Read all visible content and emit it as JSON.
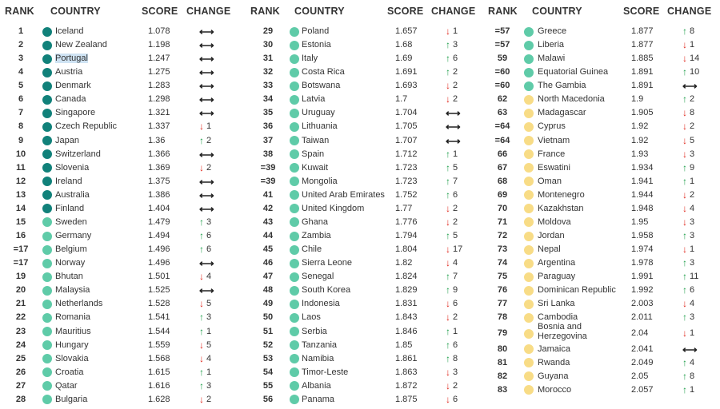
{
  "headers": {
    "rank": "RANK",
    "country": "COUNTRY",
    "score": "SCORE",
    "change": "CHANGE"
  },
  "colors": {
    "dark_teal": "#11817a",
    "mid_teal": "#2fb39b",
    "light_teal": "#5fcba8",
    "yellow": "#f8dc86",
    "up": "#1f9e4a",
    "down": "#e02a1f"
  },
  "columns": [
    [
      {
        "rank": "1",
        "country": "Iceland",
        "score": "1.078",
        "dir": "flat",
        "change": "",
        "tier": "dark"
      },
      {
        "rank": "2",
        "country": "New Zealand",
        "score": "1.198",
        "dir": "flat",
        "change": "",
        "tier": "dark"
      },
      {
        "rank": "3",
        "country": "Portugal",
        "score": "1.247",
        "dir": "flat",
        "change": "",
        "tier": "dark",
        "highlight": true
      },
      {
        "rank": "4",
        "country": "Austria",
        "score": "1.275",
        "dir": "flat",
        "change": "",
        "tier": "dark"
      },
      {
        "rank": "5",
        "country": "Denmark",
        "score": "1.283",
        "dir": "flat",
        "change": "",
        "tier": "dark"
      },
      {
        "rank": "6",
        "country": "Canada",
        "score": "1.298",
        "dir": "flat",
        "change": "",
        "tier": "dark"
      },
      {
        "rank": "7",
        "country": "Singapore",
        "score": "1.321",
        "dir": "flat",
        "change": "",
        "tier": "dark"
      },
      {
        "rank": "8",
        "country": "Czech Republic",
        "score": "1.337",
        "dir": "down",
        "change": "1",
        "tier": "dark"
      },
      {
        "rank": "9",
        "country": "Japan",
        "score": "1.36",
        "dir": "up",
        "change": "2",
        "tier": "dark"
      },
      {
        "rank": "10",
        "country": "Switzerland",
        "score": "1.366",
        "dir": "flat",
        "change": "",
        "tier": "dark"
      },
      {
        "rank": "11",
        "country": "Slovenia",
        "score": "1.369",
        "dir": "down",
        "change": "2",
        "tier": "dark"
      },
      {
        "rank": "12",
        "country": "Ireland",
        "score": "1.375",
        "dir": "flat",
        "change": "",
        "tier": "dark"
      },
      {
        "rank": "13",
        "country": "Australia",
        "score": "1.386",
        "dir": "flat",
        "change": "",
        "tier": "dark"
      },
      {
        "rank": "14",
        "country": "Finland",
        "score": "1.404",
        "dir": "flat",
        "change": "",
        "tier": "dark"
      },
      {
        "rank": "15",
        "country": "Sweden",
        "score": "1.479",
        "dir": "up",
        "change": "3",
        "tier": "light"
      },
      {
        "rank": "16",
        "country": "Germany",
        "score": "1.494",
        "dir": "up",
        "change": "6",
        "tier": "light"
      },
      {
        "rank": "=17",
        "country": "Belgium",
        "score": "1.496",
        "dir": "up",
        "change": "6",
        "tier": "light"
      },
      {
        "rank": "=17",
        "country": "Norway",
        "score": "1.496",
        "dir": "flat",
        "change": "",
        "tier": "light"
      },
      {
        "rank": "19",
        "country": "Bhutan",
        "score": "1.501",
        "dir": "down",
        "change": "4",
        "tier": "light"
      },
      {
        "rank": "20",
        "country": "Malaysia",
        "score": "1.525",
        "dir": "flat",
        "change": "",
        "tier": "light"
      },
      {
        "rank": "21",
        "country": "Netherlands",
        "score": "1.528",
        "dir": "down",
        "change": "5",
        "tier": "light"
      },
      {
        "rank": "22",
        "country": "Romania",
        "score": "1.541",
        "dir": "up",
        "change": "3",
        "tier": "light"
      },
      {
        "rank": "23",
        "country": "Mauritius",
        "score": "1.544",
        "dir": "up",
        "change": "1",
        "tier": "light"
      },
      {
        "rank": "24",
        "country": "Hungary",
        "score": "1.559",
        "dir": "down",
        "change": "5",
        "tier": "light"
      },
      {
        "rank": "25",
        "country": "Slovakia",
        "score": "1.568",
        "dir": "down",
        "change": "4",
        "tier": "light"
      },
      {
        "rank": "26",
        "country": "Croatia",
        "score": "1.615",
        "dir": "up",
        "change": "1",
        "tier": "light"
      },
      {
        "rank": "27",
        "country": "Qatar",
        "score": "1.616",
        "dir": "up",
        "change": "3",
        "tier": "light"
      },
      {
        "rank": "28",
        "country": "Bulgaria",
        "score": "1.628",
        "dir": "down",
        "change": "2",
        "tier": "light"
      }
    ],
    [
      {
        "rank": "29",
        "country": "Poland",
        "score": "1.657",
        "dir": "down",
        "change": "1",
        "tier": "light"
      },
      {
        "rank": "30",
        "country": "Estonia",
        "score": "1.68",
        "dir": "up",
        "change": "3",
        "tier": "light"
      },
      {
        "rank": "31",
        "country": "Italy",
        "score": "1.69",
        "dir": "up",
        "change": "6",
        "tier": "light"
      },
      {
        "rank": "32",
        "country": "Costa Rica",
        "score": "1.691",
        "dir": "up",
        "change": "2",
        "tier": "light"
      },
      {
        "rank": "33",
        "country": "Botswana",
        "score": "1.693",
        "dir": "down",
        "change": "2",
        "tier": "light"
      },
      {
        "rank": "34",
        "country": "Latvia",
        "score": "1.7",
        "dir": "down",
        "change": "2",
        "tier": "light"
      },
      {
        "rank": "35",
        "country": "Uruguay",
        "score": "1.704",
        "dir": "flat",
        "change": "",
        "tier": "light"
      },
      {
        "rank": "36",
        "country": "Lithuania",
        "score": "1.705",
        "dir": "flat",
        "change": "",
        "tier": "light"
      },
      {
        "rank": "37",
        "country": "Taiwan",
        "score": "1.707",
        "dir": "flat",
        "change": "",
        "tier": "light"
      },
      {
        "rank": "38",
        "country": "Spain",
        "score": "1.712",
        "dir": "up",
        "change": "1",
        "tier": "light"
      },
      {
        "rank": "=39",
        "country": "Kuwait",
        "score": "1.723",
        "dir": "up",
        "change": "5",
        "tier": "light"
      },
      {
        "rank": "=39",
        "country": "Mongolia",
        "score": "1.723",
        "dir": "up",
        "change": "7",
        "tier": "light"
      },
      {
        "rank": "41",
        "country": "United Arab Emirates",
        "score": "1.752",
        "dir": "up",
        "change": "6",
        "tier": "light"
      },
      {
        "rank": "42",
        "country": "United Kingdom",
        "score": "1.77",
        "dir": "down",
        "change": "2",
        "tier": "light"
      },
      {
        "rank": "43",
        "country": "Ghana",
        "score": "1.776",
        "dir": "down",
        "change": "2",
        "tier": "light"
      },
      {
        "rank": "44",
        "country": "Zambia",
        "score": "1.794",
        "dir": "up",
        "change": "5",
        "tier": "light"
      },
      {
        "rank": "45",
        "country": "Chile",
        "score": "1.804",
        "dir": "down",
        "change": "17",
        "tier": "light"
      },
      {
        "rank": "46",
        "country": "Sierra Leone",
        "score": "1.82",
        "dir": "down",
        "change": "4",
        "tier": "light"
      },
      {
        "rank": "47",
        "country": "Senegal",
        "score": "1.824",
        "dir": "up",
        "change": "7",
        "tier": "light"
      },
      {
        "rank": "48",
        "country": "South Korea",
        "score": "1.829",
        "dir": "up",
        "change": "9",
        "tier": "light"
      },
      {
        "rank": "49",
        "country": "Indonesia",
        "score": "1.831",
        "dir": "down",
        "change": "6",
        "tier": "light"
      },
      {
        "rank": "50",
        "country": "Laos",
        "score": "1.843",
        "dir": "down",
        "change": "2",
        "tier": "light"
      },
      {
        "rank": "51",
        "country": "Serbia",
        "score": "1.846",
        "dir": "up",
        "change": "1",
        "tier": "light"
      },
      {
        "rank": "52",
        "country": "Tanzania",
        "score": "1.85",
        "dir": "up",
        "change": "6",
        "tier": "light"
      },
      {
        "rank": "53",
        "country": "Namibia",
        "score": "1.861",
        "dir": "up",
        "change": "8",
        "tier": "light"
      },
      {
        "rank": "54",
        "country": "Timor-Leste",
        "score": "1.863",
        "dir": "down",
        "change": "3",
        "tier": "light"
      },
      {
        "rank": "55",
        "country": "Albania",
        "score": "1.872",
        "dir": "down",
        "change": "2",
        "tier": "light"
      },
      {
        "rank": "56",
        "country": "Panama",
        "score": "1.875",
        "dir": "down",
        "change": "6",
        "tier": "light"
      }
    ],
    [
      {
        "rank": "=57",
        "country": "Greece",
        "score": "1.877",
        "dir": "up",
        "change": "8",
        "tier": "light"
      },
      {
        "rank": "=57",
        "country": "Liberia",
        "score": "1.877",
        "dir": "down",
        "change": "1",
        "tier": "light"
      },
      {
        "rank": "59",
        "country": "Malawi",
        "score": "1.885",
        "dir": "down",
        "change": "14",
        "tier": "light"
      },
      {
        "rank": "=60",
        "country": "Equatorial Guinea",
        "score": "1.891",
        "dir": "up",
        "change": "10",
        "tier": "light"
      },
      {
        "rank": "=60",
        "country": "The Gambia",
        "score": "1.891",
        "dir": "flat",
        "change": "",
        "tier": "light"
      },
      {
        "rank": "62",
        "country": "North Macedonia",
        "score": "1.9",
        "dir": "up",
        "change": "2",
        "tier": "yellow"
      },
      {
        "rank": "63",
        "country": "Madagascar",
        "score": "1.905",
        "dir": "down",
        "change": "8",
        "tier": "yellow"
      },
      {
        "rank": "=64",
        "country": "Cyprus",
        "score": "1.92",
        "dir": "down",
        "change": "2",
        "tier": "yellow"
      },
      {
        "rank": "=64",
        "country": "Vietnam",
        "score": "1.92",
        "dir": "down",
        "change": "5",
        "tier": "yellow"
      },
      {
        "rank": "66",
        "country": "France",
        "score": "1.93",
        "dir": "down",
        "change": "3",
        "tier": "yellow"
      },
      {
        "rank": "67",
        "country": "Eswatini",
        "score": "1.934",
        "dir": "up",
        "change": "9",
        "tier": "yellow"
      },
      {
        "rank": "68",
        "country": "Oman",
        "score": "1.941",
        "dir": "up",
        "change": "1",
        "tier": "yellow"
      },
      {
        "rank": "69",
        "country": "Montenegro",
        "score": "1.944",
        "dir": "down",
        "change": "2",
        "tier": "yellow"
      },
      {
        "rank": "70",
        "country": "Kazakhstan",
        "score": "1.948",
        "dir": "down",
        "change": "4",
        "tier": "yellow"
      },
      {
        "rank": "71",
        "country": "Moldova",
        "score": "1.95",
        "dir": "down",
        "change": "3",
        "tier": "yellow"
      },
      {
        "rank": "72",
        "country": "Jordan",
        "score": "1.958",
        "dir": "up",
        "change": "3",
        "tier": "yellow"
      },
      {
        "rank": "73",
        "country": "Nepal",
        "score": "1.974",
        "dir": "down",
        "change": "1",
        "tier": "yellow"
      },
      {
        "rank": "74",
        "country": "Argentina",
        "score": "1.978",
        "dir": "up",
        "change": "3",
        "tier": "yellow"
      },
      {
        "rank": "75",
        "country": "Paraguay",
        "score": "1.991",
        "dir": "up",
        "change": "11",
        "tier": "yellow"
      },
      {
        "rank": "76",
        "country": "Dominican Republic",
        "score": "1.992",
        "dir": "up",
        "change": "6",
        "tier": "yellow"
      },
      {
        "rank": "77",
        "country": "Sri Lanka",
        "score": "2.003",
        "dir": "down",
        "change": "4",
        "tier": "yellow"
      },
      {
        "rank": "78",
        "country": "Cambodia",
        "score": "2.011",
        "dir": "up",
        "change": "3",
        "tier": "yellow"
      },
      {
        "rank": "79",
        "country": "Bosnia and Herzegovina",
        "score": "2.04",
        "dir": "down",
        "change": "1",
        "tier": "yellow",
        "twoLine": true
      },
      {
        "rank": "80",
        "country": "Jamaica",
        "score": "2.041",
        "dir": "flat",
        "change": "",
        "tier": "yellow"
      },
      {
        "rank": "81",
        "country": "Rwanda",
        "score": "2.049",
        "dir": "up",
        "change": "4",
        "tier": "yellow"
      },
      {
        "rank": "82",
        "country": "Guyana",
        "score": "2.05",
        "dir": "up",
        "change": "8",
        "tier": "yellow"
      },
      {
        "rank": "83",
        "country": "Morocco",
        "score": "2.057",
        "dir": "up",
        "change": "1",
        "tier": "yellow"
      }
    ]
  ]
}
